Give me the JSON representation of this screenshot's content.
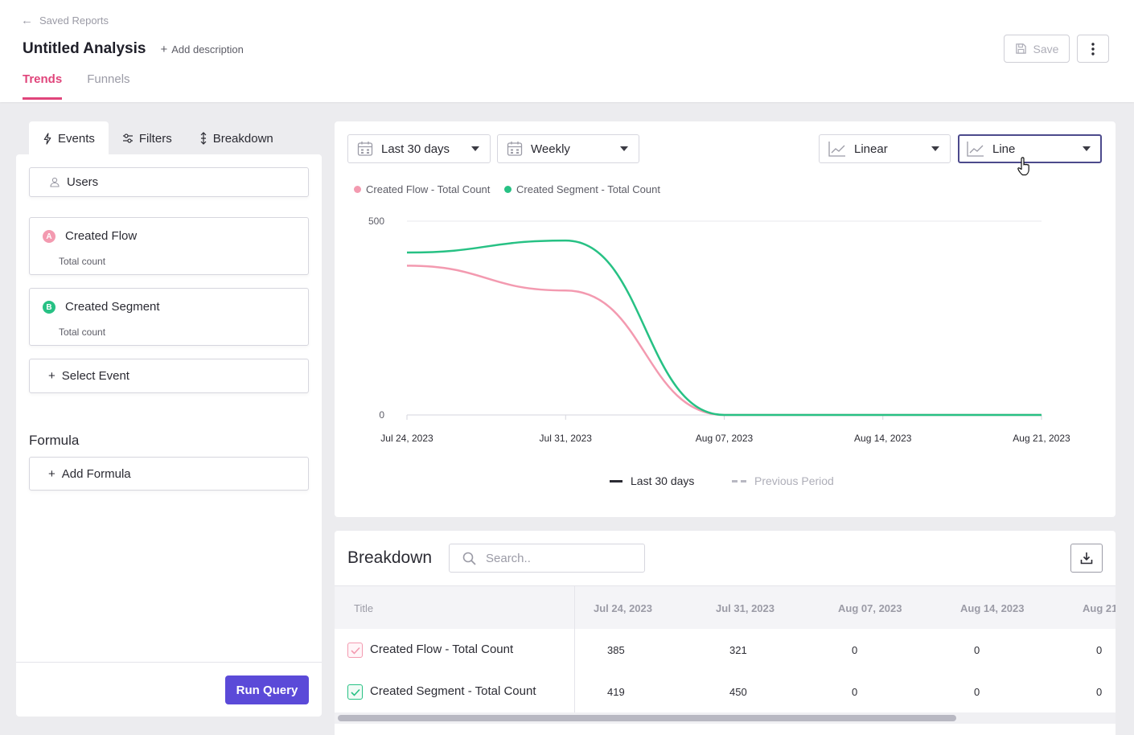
{
  "header": {
    "back_label": "Saved Reports",
    "title": "Untitled Analysis",
    "add_description": "Add description",
    "tabs": [
      {
        "label": "Trends",
        "active": true
      },
      {
        "label": "Funnels",
        "active": false
      }
    ],
    "save_label": "Save"
  },
  "left": {
    "tabs": [
      {
        "label": "Events",
        "active": true
      },
      {
        "label": "Filters"
      },
      {
        "label": "Breakdown"
      }
    ],
    "users_label": "Users",
    "events": [
      {
        "badge": "A",
        "name": "Created Flow",
        "sub": "Total count",
        "color": "#f39ab0"
      },
      {
        "badge": "B",
        "name": "Created Segment",
        "sub": "Total count",
        "color": "#27c184"
      }
    ],
    "select_event": "Select Event",
    "formula_label": "Formula",
    "add_formula": "Add Formula",
    "run_query": "Run Query"
  },
  "controls": {
    "range": "Last 30 days",
    "interval": "Weekly",
    "scale": "Linear",
    "chart_type": "Line"
  },
  "chart_data": {
    "type": "line",
    "x": [
      "Jul 24, 2023",
      "Jul 31, 2023",
      "Aug 07, 2023",
      "Aug 14, 2023",
      "Aug 21, 2023"
    ],
    "yticks": [
      "500",
      "0"
    ],
    "ylim": [
      0,
      500
    ],
    "series": [
      {
        "name": "Created Flow - Total Count",
        "color": "#f39ab0",
        "values": [
          385,
          321,
          0,
          0,
          0
        ]
      },
      {
        "name": "Created Segment - Total Count",
        "color": "#27c184",
        "values": [
          419,
          450,
          0,
          0,
          0
        ]
      }
    ],
    "grid": true,
    "legend_position": "top-left",
    "period_legend": {
      "current": "Last 30 days",
      "previous": "Previous Period"
    }
  },
  "breakdown": {
    "title": "Breakdown",
    "search_placeholder": "Search..",
    "columns": [
      "Title",
      "Jul 24, 2023",
      "Jul 31, 2023",
      "Aug 07, 2023",
      "Aug 14, 2023",
      "Aug 21"
    ],
    "rows": [
      {
        "name": "Created Flow - Total Count",
        "color": "#f39ab0",
        "values": [
          "385",
          "321",
          "0",
          "0",
          "0"
        ]
      },
      {
        "name": "Created Segment - Total Count",
        "color": "#27c184",
        "values": [
          "419",
          "450",
          "0",
          "0",
          "0"
        ]
      }
    ]
  }
}
